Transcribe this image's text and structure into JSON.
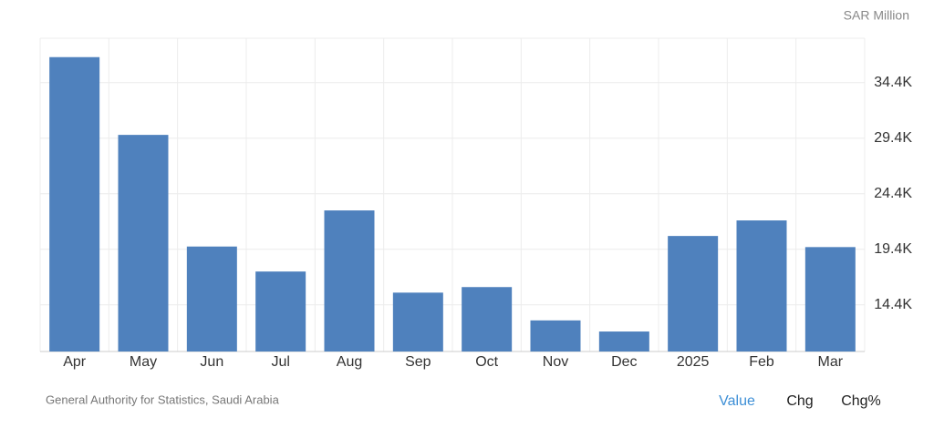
{
  "chart_data": {
    "type": "bar",
    "y_axis_label": "SAR Million",
    "source": "General Authority for Statistics, Saudi Arabia",
    "categories": [
      "Apr",
      "May",
      "Jun",
      "Jul",
      "Aug",
      "Sep",
      "Oct",
      "Nov",
      "Dec",
      "2025",
      "Feb",
      "Mar"
    ],
    "values": [
      36700,
      29700,
      19650,
      17400,
      22900,
      15500,
      16000,
      13000,
      12000,
      20600,
      22000,
      19600
    ],
    "color": "#4f81bd",
    "ylim": [
      10200,
      38400
    ],
    "yticks": [
      {
        "value": 14400,
        "label": "14.4K"
      },
      {
        "value": 19400,
        "label": "19.4K"
      },
      {
        "value": 24400,
        "label": "24.4K"
      },
      {
        "value": 29400,
        "label": "29.4K"
      },
      {
        "value": 34400,
        "label": "34.4K"
      }
    ],
    "grid": true
  },
  "controls": [
    "Value",
    "Chg",
    "Chg%"
  ]
}
